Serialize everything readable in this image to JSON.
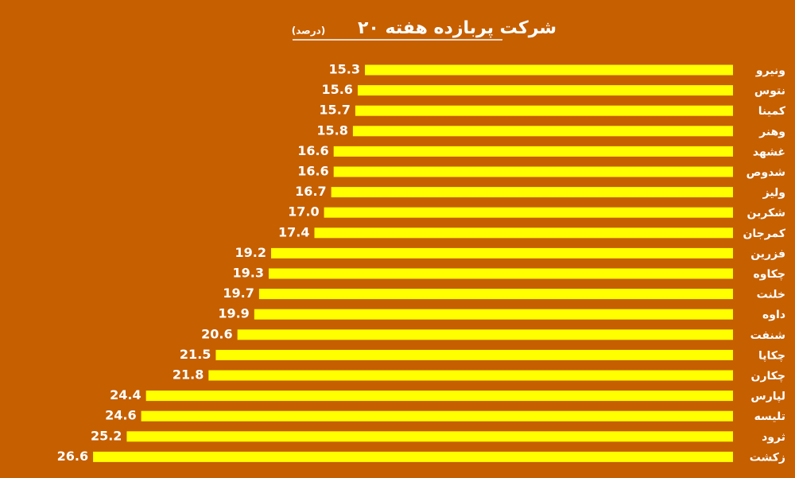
{
  "chart_data": {
    "type": "bar",
    "orientation": "horizontal",
    "title": "۲۰ شرکت پربازده هفته",
    "subtitle": "(درصد)",
    "color": "#ffff00",
    "categories": [
      "ونیرو",
      "نتوس",
      "کمینا",
      "وهنر",
      "غشهد",
      "شدوص",
      "ولیز",
      "شکربن",
      "کمرجان",
      "فزرین",
      "چکاوه",
      "خلنت",
      "داوه",
      "شنفت",
      "چکاپا",
      "چکارن",
      "لپارس",
      "تلیسه",
      "ثرود",
      "زکشت"
    ],
    "values": [
      15.3,
      15.6,
      15.7,
      15.8,
      16.6,
      16.6,
      16.7,
      17.0,
      17.4,
      19.2,
      19.3,
      19.7,
      19.9,
      20.6,
      21.5,
      21.8,
      24.4,
      24.6,
      25.2,
      26.6
    ],
    "value_labels": [
      "15.3",
      "15.6",
      "15.7",
      "15.8",
      "16.6",
      "16.6",
      "16.7",
      "17.0",
      "17.4",
      "19.2",
      "19.3",
      "19.7",
      "19.9",
      "20.6",
      "21.5",
      "21.8",
      "24.4",
      "24.6",
      "25.2",
      "26.6"
    ]
  }
}
